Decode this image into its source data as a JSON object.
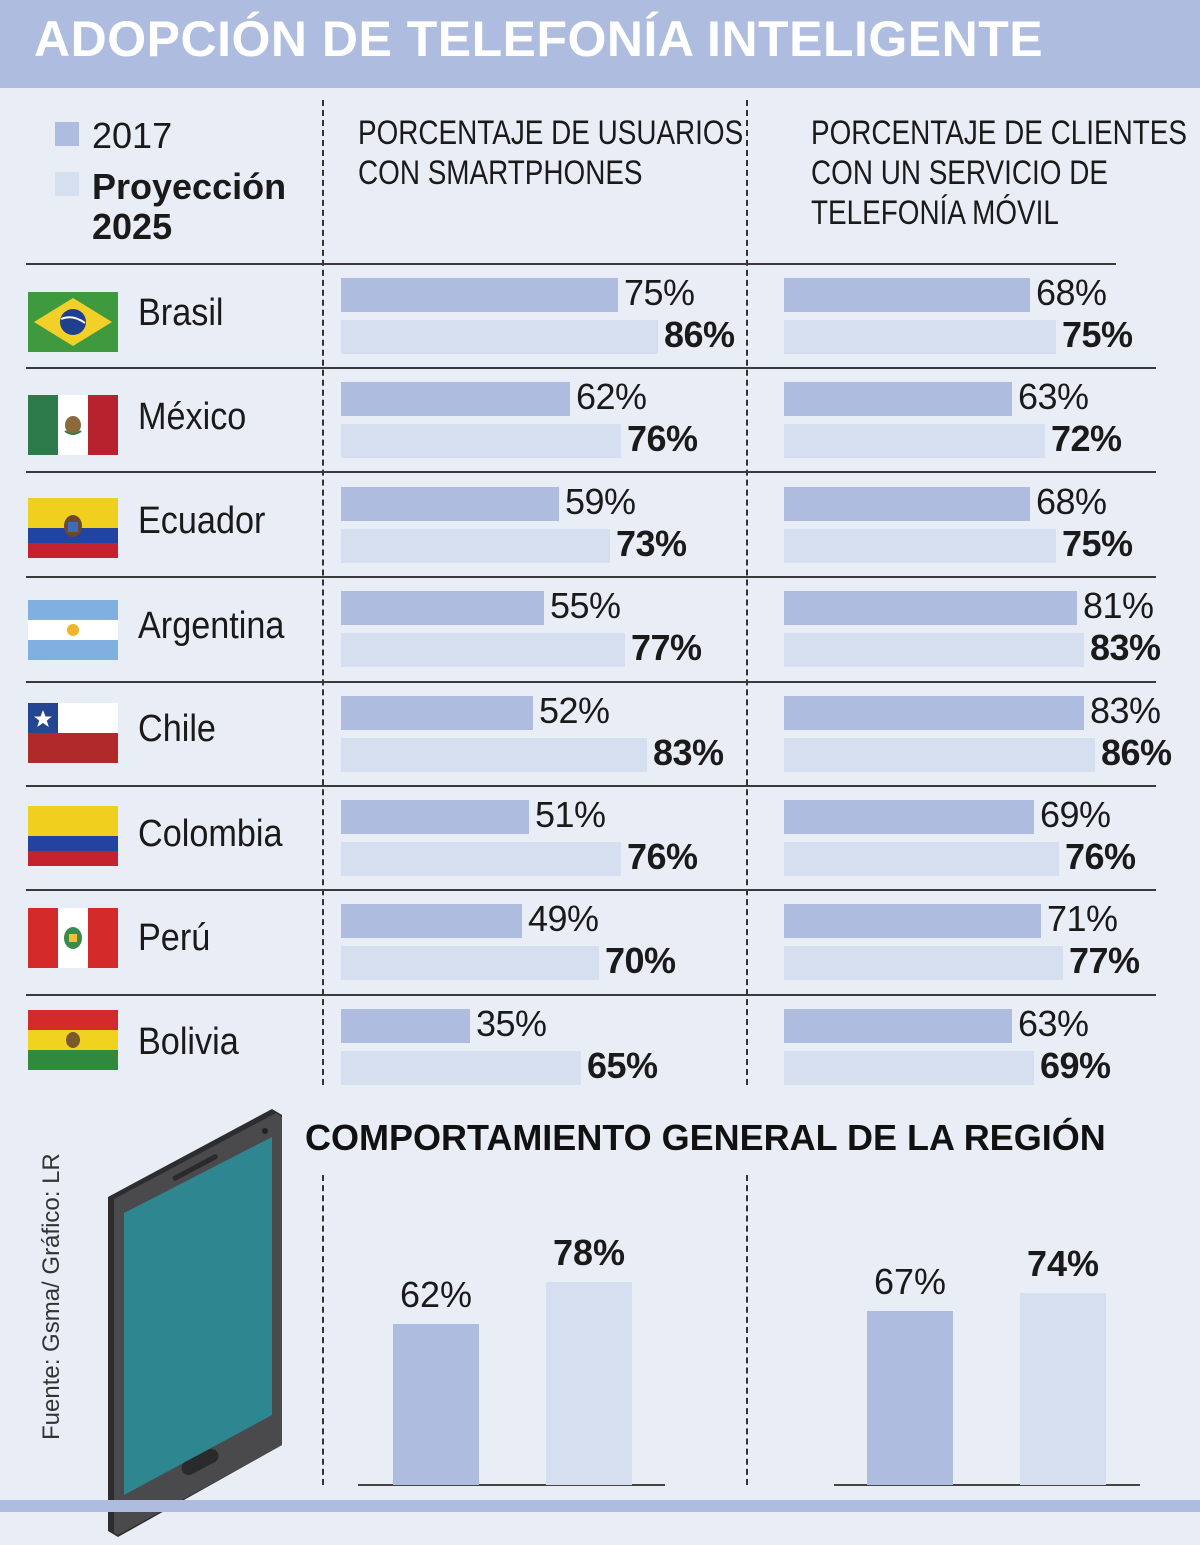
{
  "title": "ADOPCIÓN DE TELEFONÍA INTELIGENTE",
  "legend": {
    "year_2017": "2017",
    "projection_line1": "Proyección",
    "projection_line2": "2025"
  },
  "columns": {
    "smartphones_line1": "PORCENTAJE DE USUARIOS",
    "smartphones_line2": "CON SMARTPHONES",
    "mobile_line1": "PORCENTAJE DE CLIENTES",
    "mobile_line2": "CON UN SERVICIO DE",
    "mobile_line3": "TELEFONÍA MÓVIL"
  },
  "region": {
    "title": "COMPORTAMIENTO GENERAL DE LA REGIÓN"
  },
  "source": "Fuente: Gsma/ Gráfico: LR",
  "colors": {
    "header": "#adbcdf",
    "bar_2017": "#adbcdf",
    "bar_2025": "#d6dff0",
    "background": "#e9edf6"
  },
  "chart_data": [
    {
      "type": "bar",
      "title": "PORCENTAJE DE USUARIOS CON SMARTPHONES",
      "orientation": "horizontal",
      "categories": [
        "Brasil",
        "México",
        "Ecuador",
        "Argentina",
        "Chile",
        "Colombia",
        "Perú",
        "Bolivia"
      ],
      "series": [
        {
          "name": "2017",
          "values": [
            75,
            62,
            59,
            55,
            52,
            51,
            49,
            35
          ],
          "labels": [
            "75%",
            "62%",
            "59%",
            "55%",
            "52%",
            "51%",
            "49%",
            "35%"
          ]
        },
        {
          "name": "Proyección 2025",
          "values": [
            86,
            76,
            73,
            77,
            83,
            76,
            70,
            65
          ],
          "labels": [
            "86%",
            "76%",
            "73%",
            "77%",
            "83%",
            "76%",
            "70%",
            "65%"
          ]
        }
      ],
      "xlim": [
        0,
        100
      ]
    },
    {
      "type": "bar",
      "title": "PORCENTAJE DE CLIENTES CON UN SERVICIO DE TELEFONÍA MÓVIL",
      "orientation": "horizontal",
      "categories": [
        "Brasil",
        "México",
        "Ecuador",
        "Argentina",
        "Chile",
        "Colombia",
        "Perú",
        "Bolivia"
      ],
      "series": [
        {
          "name": "2017",
          "values": [
            68,
            63,
            68,
            81,
            83,
            69,
            71,
            63
          ],
          "labels": [
            "68%",
            "63%",
            "68%",
            "81%",
            "83%",
            "69%",
            "71%",
            "63%"
          ]
        },
        {
          "name": "Proyección 2025",
          "values": [
            75,
            72,
            75,
            83,
            86,
            76,
            77,
            69
          ],
          "labels": [
            "75%",
            "72%",
            "75%",
            "83%",
            "86%",
            "76%",
            "77%",
            "69%"
          ]
        }
      ],
      "xlim": [
        0,
        100
      ]
    },
    {
      "type": "bar",
      "title": "COMPORTAMIENTO GENERAL DE LA REGIÓN - Smartphones",
      "orientation": "vertical",
      "categories": [
        "2017",
        "Proyección 2025"
      ],
      "values": [
        62,
        78
      ],
      "labels": [
        "62%",
        "78%"
      ]
    },
    {
      "type": "bar",
      "title": "COMPORTAMIENTO GENERAL DE LA REGIÓN - Telefonía móvil",
      "orientation": "vertical",
      "categories": [
        "2017",
        "Proyección 2025"
      ],
      "values": [
        67,
        74
      ],
      "labels": [
        "67%",
        "74%"
      ]
    }
  ]
}
